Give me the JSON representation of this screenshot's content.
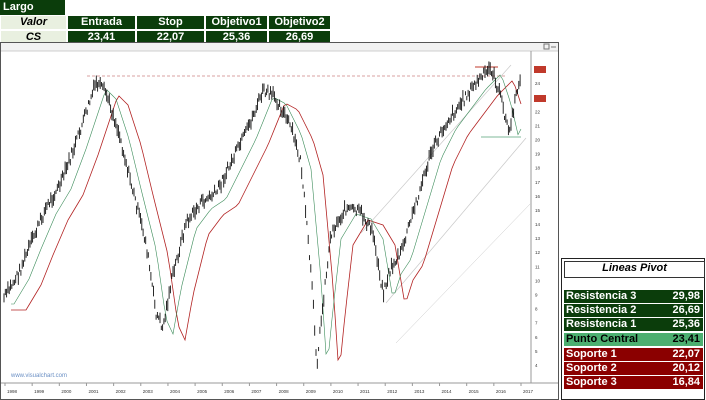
{
  "header": {
    "title": "Largo",
    "columns": [
      "Valor",
      "Entrada",
      "Stop",
      "Objetivo1",
      "Objetivo2"
    ],
    "row": {
      "valor": "CS",
      "entrada": "23,41",
      "stop": "22,07",
      "objetivo1": "25,36",
      "objetivo2": "26,69"
    }
  },
  "chart": {
    "watermark": "www.visualchart.com",
    "price_labels": [
      "25",
      "24",
      "23",
      "22",
      "21",
      "20",
      "19",
      "18",
      "17",
      "16",
      "15",
      "14",
      "13",
      "12",
      "11",
      "10",
      "9",
      "8",
      "7",
      "6",
      "5",
      "4"
    ],
    "x_labels": [
      "1998",
      "1999",
      "2000",
      "2001",
      "2002",
      "2003",
      "2004",
      "2005",
      "2006",
      "2007",
      "2008",
      "2009",
      "2010",
      "2011",
      "2012",
      "2013",
      "2014",
      "2015",
      "2016",
      "2017"
    ],
    "colors": {
      "price": "#111111",
      "ma_slow": "#b22222",
      "ma_fast": "#3c8c5a",
      "resistance": "#d9a0a0",
      "support": "#7fb89a",
      "channel": "#c8c8c8"
    }
  },
  "pivot": {
    "title": "Lineas Pivot",
    "resistances": [
      {
        "label": "Resistencia 3",
        "value": "29,98"
      },
      {
        "label": "Resistencia 2",
        "value": "26,69"
      },
      {
        "label": "Resistencia 1",
        "value": "25,36"
      }
    ],
    "central": {
      "label": "Punto Central",
      "value": "23,41"
    },
    "supports": [
      {
        "label": "Soporte 1",
        "value": "22,07"
      },
      {
        "label": "Soporte 2",
        "value": "20,12"
      },
      {
        "label": "Soporte 3",
        "value": "16,84"
      }
    ]
  }
}
